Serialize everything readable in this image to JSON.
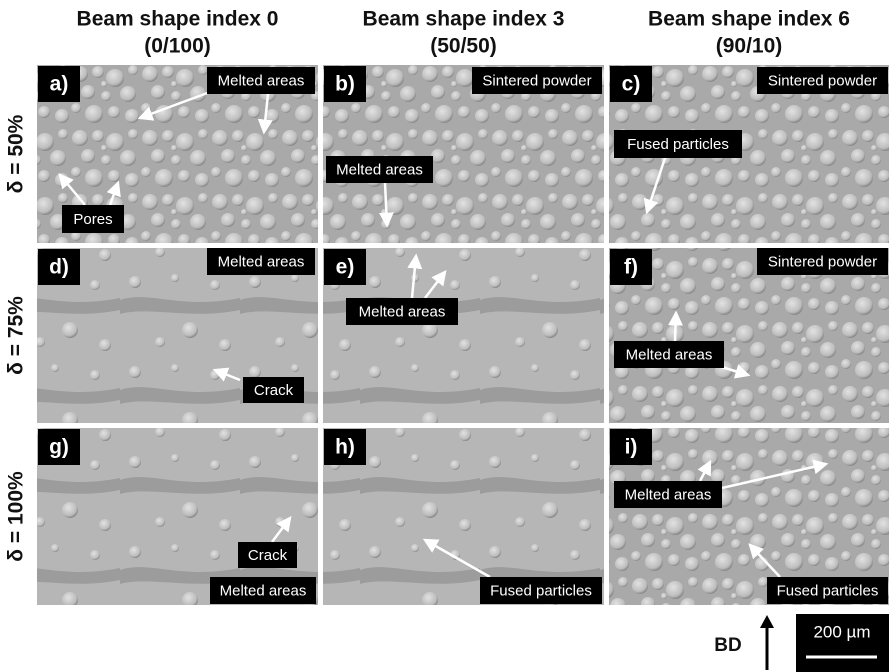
{
  "columns": [
    {
      "title": "Beam shape index 0",
      "subtitle": "(0/100)"
    },
    {
      "title": "Beam shape index 3",
      "subtitle": "(50/50)"
    },
    {
      "title": "Beam shape index 6",
      "subtitle": "(90/10)"
    }
  ],
  "rows": [
    "δ = 50%",
    "δ = 75%",
    "δ = 100%"
  ],
  "panels": [
    {
      "letter": "a)",
      "labels": [
        "Melted areas",
        "Pores"
      ]
    },
    {
      "letter": "b)",
      "labels": [
        "Sintered powder",
        "Melted areas"
      ]
    },
    {
      "letter": "c)",
      "labels": [
        "Sintered powder",
        "Fused particles"
      ]
    },
    {
      "letter": "d)",
      "labels": [
        "Melted areas",
        "Crack"
      ]
    },
    {
      "letter": "e)",
      "labels": [
        "Melted areas"
      ]
    },
    {
      "letter": "f)",
      "labels": [
        "Sintered powder",
        "Melted areas"
      ]
    },
    {
      "letter": "g)",
      "labels": [
        "Crack",
        "Melted areas"
      ]
    },
    {
      "letter": "h)",
      "labels": [
        "Fused particles"
      ]
    },
    {
      "letter": "i)",
      "labels": [
        "Melted areas",
        "Fused particles"
      ]
    }
  ],
  "build_direction": "BD",
  "scale_bar": "200 µm"
}
